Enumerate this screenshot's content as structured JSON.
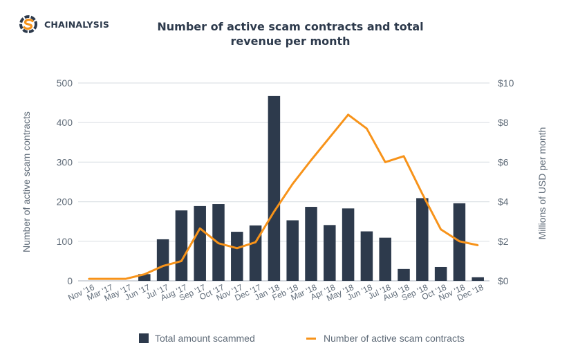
{
  "brand": {
    "name": "CHAINALYSIS",
    "logo_icon": "chainalysis-logo-icon",
    "colors": {
      "dark": "#2d3a4c",
      "orange": "#f7931a"
    }
  },
  "chart_data": {
    "type": "bar+line",
    "title": "Number of active scam contracts and total revenue per month",
    "title_lines": [
      "Number of active scam contracts and total",
      "revenue per month"
    ],
    "xlabel": "",
    "ylabel_left": "Number of active scam contracts",
    "ylabel_right": "Millions of USD per month",
    "ylim_left": [
      0,
      500
    ],
    "ylim_right": [
      0,
      10
    ],
    "yticks_left": [
      "0",
      "100",
      "200",
      "300",
      "400",
      "500"
    ],
    "yticks_right": [
      "$0",
      "$2",
      "$4",
      "$6",
      "$8",
      "$10"
    ],
    "grid": true,
    "legend_position": "bottom",
    "categories": [
      "Nov '16",
      "Mar '17",
      "May '17",
      "Jun '17",
      "Jul '17",
      "Aug '17",
      "Sep '17",
      "Oct '17",
      "Nov '17",
      "Dec '17",
      "Jan '18",
      "Feb '18",
      "Mar '18",
      "Apr '18",
      "May '18",
      "Jun '18",
      "Jul '18",
      "Aug '18",
      "Sep '18",
      "Oct '18",
      "Nov '18",
      "Dec '18"
    ],
    "series": [
      {
        "name": "Total amount scammed",
        "type": "bar",
        "axis": "left",
        "color": "#2d3a4c",
        "values": [
          0,
          0,
          0,
          17,
          105,
          178,
          189,
          194,
          124,
          140,
          467,
          153,
          187,
          141,
          183,
          125,
          109,
          30,
          209,
          35,
          196,
          9
        ]
      },
      {
        "name": "Number of active scam contracts",
        "type": "line",
        "axis": "right",
        "color": "#f7931a",
        "values": [
          0.1,
          0.1,
          0.1,
          0.33,
          0.75,
          1.0,
          2.65,
          1.9,
          1.65,
          1.95,
          3.5,
          4.9,
          6.1,
          7.25,
          8.4,
          7.7,
          6.0,
          6.3,
          4.4,
          2.6,
          2.0,
          1.8
        ]
      }
    ]
  }
}
